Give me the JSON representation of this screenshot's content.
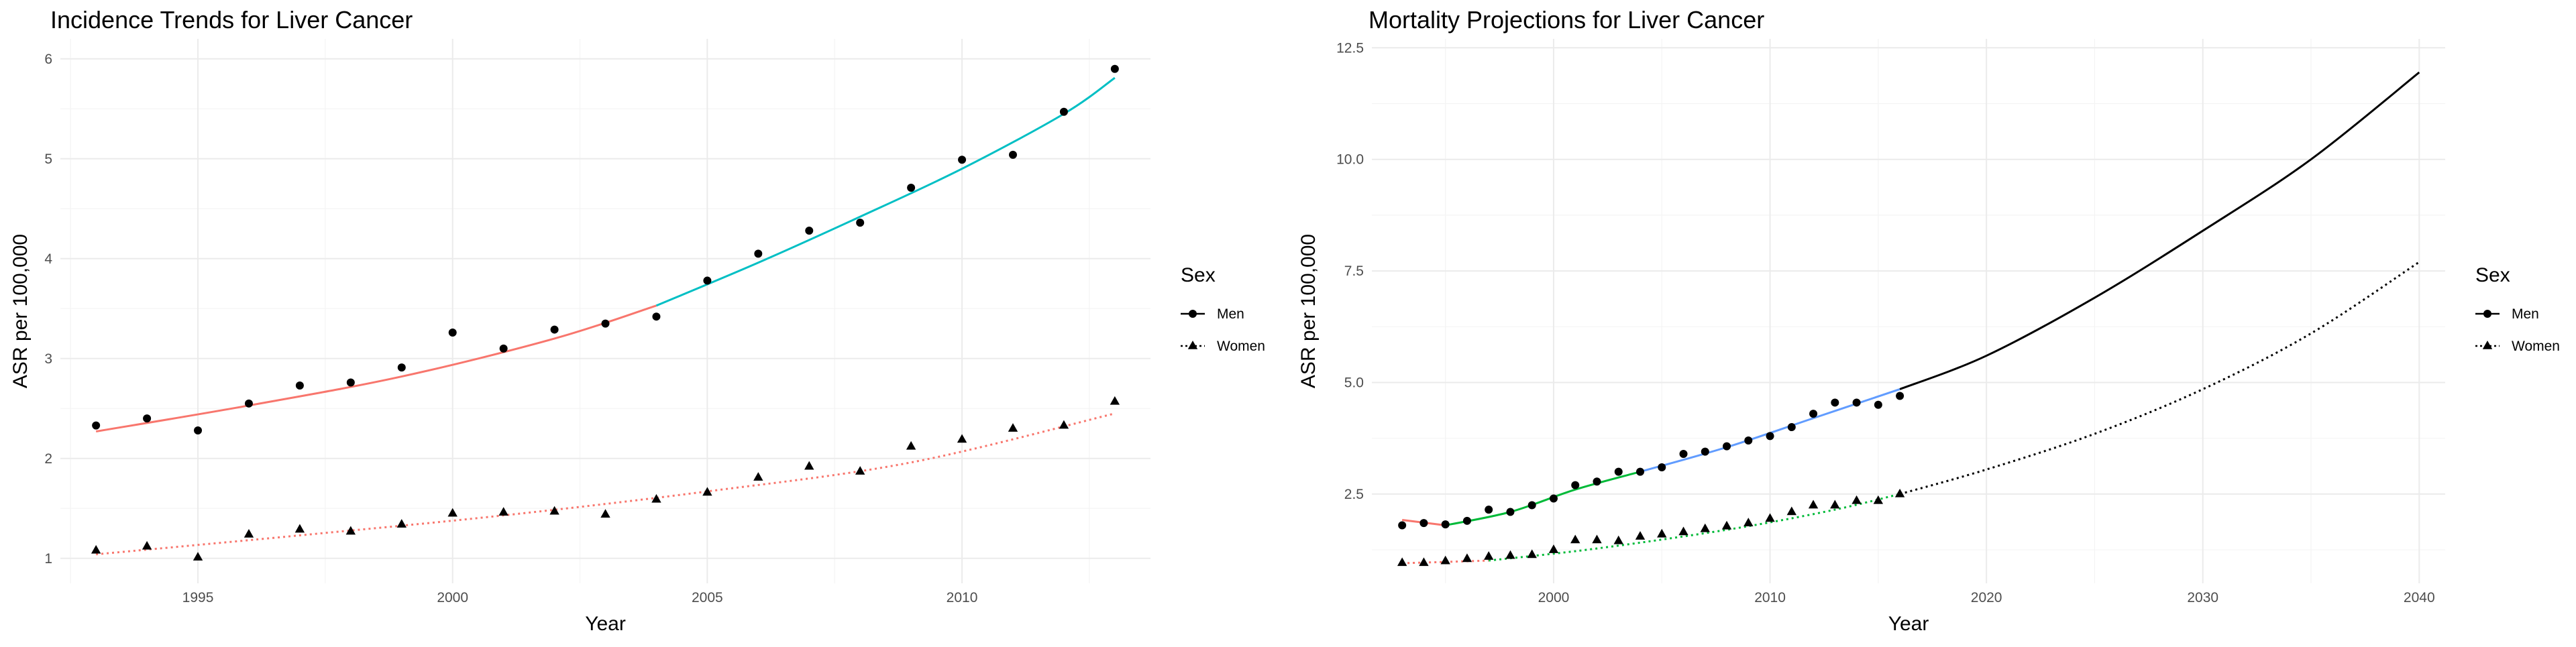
{
  "chart_data": [
    {
      "type": "scatter",
      "title": "Incidence Trends for Liver Cancer",
      "xlabel": "Year",
      "ylabel": "ASR per 100,000",
      "xlim": [
        1992.3,
        2013.7
      ],
      "ylim": [
        0.75,
        6.2
      ],
      "x_ticks": [
        1995,
        2000,
        2005,
        2010
      ],
      "y_ticks": [
        1,
        2,
        3,
        4,
        5,
        6
      ],
      "grid": true,
      "legend": {
        "title": "Sex",
        "position": "right",
        "entries": [
          "Men",
          "Women"
        ]
      },
      "series": [
        {
          "name": "Men",
          "marker": "circle",
          "x": [
            1993,
            1994,
            1995,
            1996,
            1997,
            1998,
            1999,
            2000,
            2001,
            2002,
            2003,
            2004,
            2005,
            2006,
            2007,
            2008,
            2009,
            2010,
            2011,
            2012,
            2013
          ],
          "y": [
            2.33,
            2.4,
            2.28,
            2.55,
            2.73,
            2.76,
            2.91,
            3.26,
            3.1,
            3.29,
            3.35,
            3.42,
            3.78,
            4.05,
            4.28,
            4.36,
            4.71,
            4.99,
            5.04,
            5.47,
            5.9
          ]
        },
        {
          "name": "Women",
          "marker": "triangle",
          "x": [
            1993,
            1994,
            1995,
            1996,
            1997,
            1998,
            1999,
            2000,
            2001,
            2002,
            2003,
            2004,
            2005,
            2006,
            2007,
            2008,
            2009,
            2010,
            2011,
            2012,
            2013
          ],
          "y": [
            1.08,
            1.12,
            1.01,
            1.24,
            1.29,
            1.27,
            1.34,
            1.45,
            1.46,
            1.47,
            1.44,
            1.59,
            1.66,
            1.81,
            1.92,
            1.87,
            2.12,
            2.19,
            2.3,
            2.33,
            2.57
          ]
        }
      ],
      "fits": [
        {
          "series": "Men",
          "color": "#f8766d",
          "dash": "solid",
          "x": [
            1993,
            1996,
            1999,
            2002,
            2004
          ],
          "y": [
            2.27,
            2.53,
            2.82,
            3.2,
            3.53
          ]
        },
        {
          "series": "Men",
          "color": "#00bfc4",
          "dash": "solid",
          "x": [
            2004,
            2006,
            2008,
            2010,
            2012,
            2013
          ],
          "y": [
            3.53,
            3.96,
            4.42,
            4.9,
            5.45,
            5.81
          ]
        },
        {
          "series": "Women",
          "color": "#f8766d",
          "dash": "dotted",
          "x": [
            1993,
            1997,
            2001,
            2005,
            2009,
            2013
          ],
          "y": [
            1.04,
            1.23,
            1.43,
            1.67,
            1.96,
            2.45
          ]
        }
      ]
    },
    {
      "type": "line",
      "title": "Mortality Projections for Liver Cancer",
      "xlabel": "Year",
      "ylabel": "ASR per 100,000",
      "xlim": [
        1991.6,
        2041.2
      ],
      "ylim": [
        0.5,
        12.7
      ],
      "x_ticks": [
        2000,
        2010,
        2020,
        2030,
        2040
      ],
      "y_ticks": [
        2.5,
        5.0,
        7.5,
        10.0,
        12.5
      ],
      "y_tick_labels": [
        "2.5",
        "5.0",
        "7.5",
        "10.0",
        "12.5"
      ],
      "grid": true,
      "legend": {
        "title": "Sex",
        "position": "right",
        "entries": [
          "Men",
          "Women"
        ]
      },
      "series": [
        {
          "name": "Men",
          "marker": "circle",
          "x": [
            1993,
            1994,
            1995,
            1996,
            1997,
            1998,
            1999,
            2000,
            2001,
            2002,
            2003,
            2004,
            2005,
            2006,
            2007,
            2008,
            2009,
            2010,
            2011,
            2012,
            2013,
            2014,
            2015,
            2016
          ],
          "y": [
            1.8,
            1.85,
            1.82,
            1.9,
            2.15,
            2.1,
            2.25,
            2.4,
            2.7,
            2.78,
            3.0,
            3.0,
            3.1,
            3.4,
            3.45,
            3.57,
            3.7,
            3.8,
            4.0,
            4.3,
            4.55,
            4.55,
            4.5,
            4.7
          ]
        },
        {
          "name": "Women",
          "marker": "triangle",
          "x": [
            1993,
            1994,
            1995,
            1996,
            1997,
            1998,
            1999,
            2000,
            2001,
            2002,
            2003,
            2004,
            2005,
            2006,
            2007,
            2008,
            2009,
            2010,
            2011,
            2012,
            2013,
            2014,
            2015,
            2016
          ],
          "y": [
            0.96,
            0.96,
            1.0,
            1.05,
            1.1,
            1.12,
            1.14,
            1.25,
            1.47,
            1.47,
            1.45,
            1.55,
            1.6,
            1.65,
            1.72,
            1.78,
            1.85,
            1.95,
            2.1,
            2.25,
            2.25,
            2.35,
            2.35,
            2.5
          ]
        }
      ],
      "fits": [
        {
          "series": "Men",
          "color": "#f8766d",
          "dash": "solid",
          "x": [
            1993,
            1995
          ],
          "y": [
            1.92,
            1.8
          ]
        },
        {
          "series": "Men",
          "color": "#00ba38",
          "dash": "solid",
          "x": [
            1995,
            1998,
            2001,
            2004
          ],
          "y": [
            1.8,
            2.1,
            2.6,
            3.0
          ]
        },
        {
          "series": "Men",
          "color": "#619cff",
          "dash": "solid",
          "x": [
            2004,
            2008,
            2012,
            2016
          ],
          "y": [
            3.0,
            3.55,
            4.2,
            4.85
          ]
        },
        {
          "series": "Men",
          "color": "#000000",
          "dash": "solid",
          "x": [
            2016,
            2020,
            2025,
            2030,
            2035,
            2040
          ],
          "y": [
            4.85,
            5.6,
            6.9,
            8.4,
            10.0,
            11.95
          ]
        },
        {
          "series": "Women",
          "color": "#f8766d",
          "dash": "dotted",
          "x": [
            1993,
            1995,
            1997
          ],
          "y": [
            0.95,
            0.98,
            1.01
          ]
        },
        {
          "series": "Women",
          "color": "#00ba38",
          "dash": "dotted",
          "x": [
            1997,
            2001,
            2005,
            2009,
            2013,
            2016
          ],
          "y": [
            1.01,
            1.22,
            1.48,
            1.78,
            2.15,
            2.5
          ]
        },
        {
          "series": "Women",
          "color": "#000000",
          "dash": "dotted",
          "x": [
            2016,
            2020,
            2025,
            2030,
            2035,
            2040
          ],
          "y": [
            2.5,
            3.05,
            3.85,
            4.85,
            6.1,
            7.7
          ]
        }
      ]
    }
  ]
}
